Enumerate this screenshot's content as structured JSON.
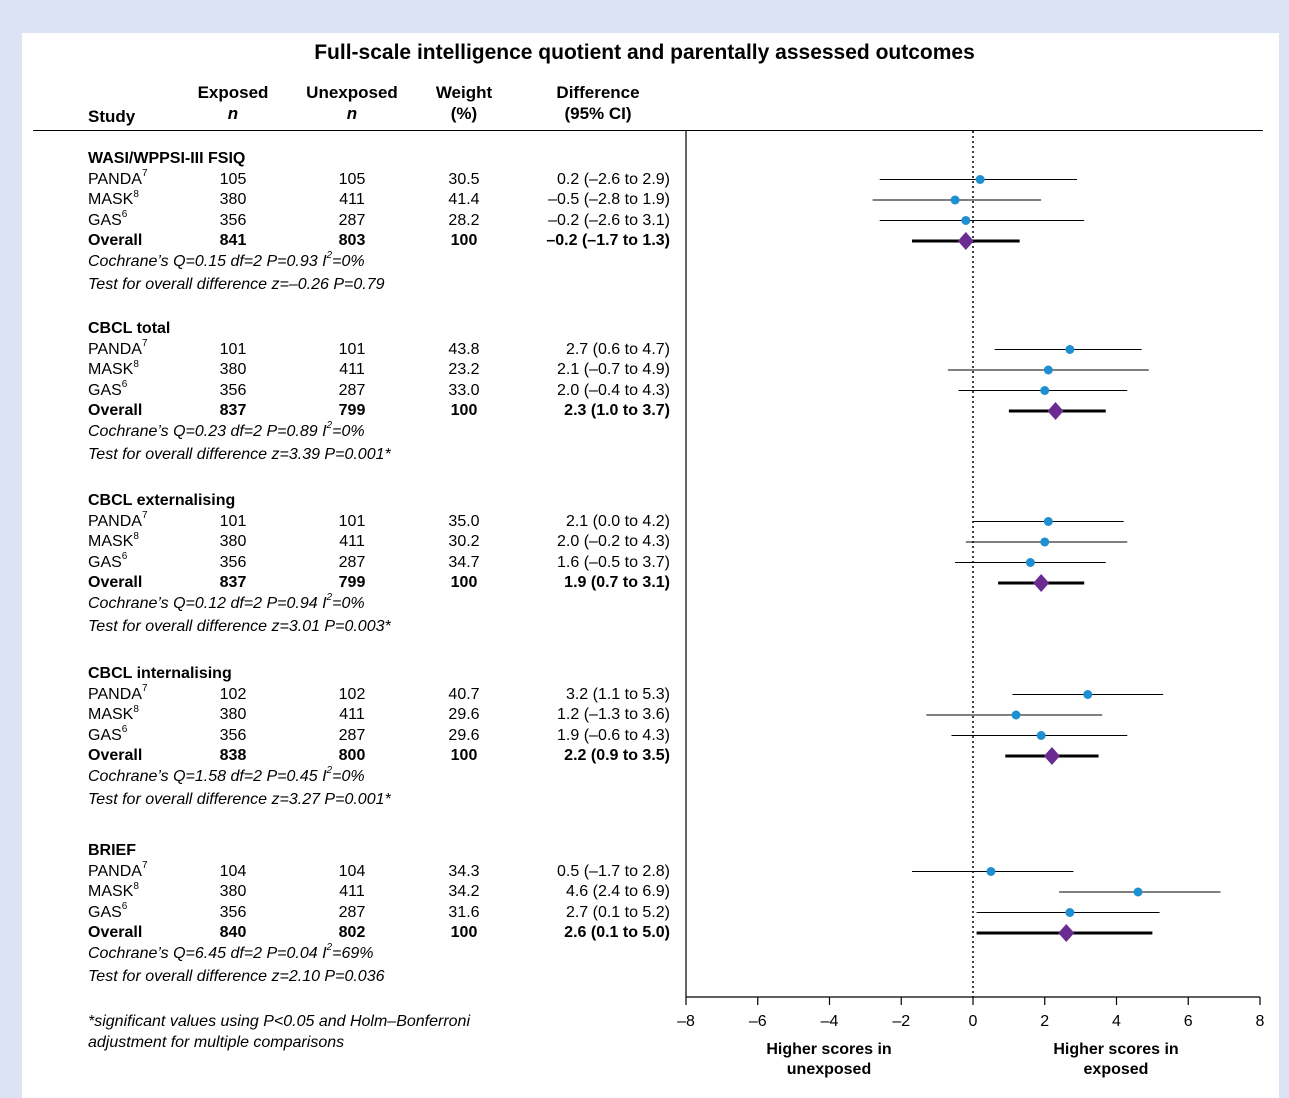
{
  "title": "Full-scale intelligence quotient and parentally assessed outcomes",
  "headers": {
    "study": "Study",
    "exposed": "Exposed",
    "exposed_n": "n",
    "unexposed": "Unexposed",
    "unexposed_n": "n",
    "weight": "Weight",
    "weight_unit": "(%)",
    "difference": "Difference",
    "ci": "(95% CI)"
  },
  "colors": {
    "study_point": "#1e8fd0",
    "overall_diamond": "#6b2c91",
    "background": "#dce3f3"
  },
  "footnote_line1": "*significant values using P<0.05 and Holm–Bonferroni",
  "footnote_line2": "adjustment for multiple comparisons",
  "axis_label_left_1": "Higher scores in",
  "axis_label_left_2": "unexposed",
  "axis_label_right_1": "Higher scores in",
  "axis_label_right_2": "exposed",
  "chart_data": {
    "type": "forest",
    "xlim": [
      -8,
      8
    ],
    "xticks": [
      -8,
      -6,
      -4,
      -2,
      0,
      2,
      4,
      6,
      8
    ],
    "reference_line": 0,
    "groups": [
      {
        "name": "WASI/WPPSI-III FSIQ",
        "studies": [
          {
            "study": "PANDA",
            "ref": "7",
            "exposed": "105",
            "unexposed": "105",
            "weight": "30.5",
            "ci_text": "0.2 (–2.6 to 2.9)",
            "est": 0.2,
            "lo": -2.6,
            "hi": 2.9
          },
          {
            "study": "MASK",
            "ref": "8",
            "exposed": "380",
            "unexposed": "411",
            "weight": "41.4",
            "ci_text": "–0.5 (–2.8 to 1.9)",
            "est": -0.5,
            "lo": -2.8,
            "hi": 1.9
          },
          {
            "study": "GAS",
            "ref": "6",
            "exposed": "356",
            "unexposed": "287",
            "weight": "28.2",
            "ci_text": "–0.2 (–2.6 to 3.1)",
            "est": -0.2,
            "lo": -2.6,
            "hi": 3.1
          }
        ],
        "overall": {
          "label": "Overall",
          "exposed": "841",
          "unexposed": "803",
          "weight": "100",
          "ci_text": "–0.2 (–1.7 to 1.3)",
          "est": -0.2,
          "lo": -1.7,
          "hi": 1.3
        },
        "het_text": "Cochrane’s Q=0.15 df=2 P=0.93 I",
        "het_sup": "2",
        "het_tail": "=0%",
        "test_text": "Test for overall difference z=–0.26 P=0.79"
      },
      {
        "name": "CBCL total",
        "studies": [
          {
            "study": "PANDA",
            "ref": "7",
            "exposed": "101",
            "unexposed": "101",
            "weight": "43.8",
            "ci_text": "2.7 (0.6 to 4.7)",
            "est": 2.7,
            "lo": 0.6,
            "hi": 4.7
          },
          {
            "study": "MASK",
            "ref": "8",
            "exposed": "380",
            "unexposed": "411",
            "weight": "23.2",
            "ci_text": "2.1 (–0.7 to 4.9)",
            "est": 2.1,
            "lo": -0.7,
            "hi": 4.9
          },
          {
            "study": "GAS",
            "ref": "6",
            "exposed": "356",
            "unexposed": "287",
            "weight": "33.0",
            "ci_text": "2.0 (–0.4 to 4.3)",
            "est": 2.0,
            "lo": -0.4,
            "hi": 4.3
          }
        ],
        "overall": {
          "label": "Overall",
          "exposed": "837",
          "unexposed": "799",
          "weight": "100",
          "ci_text": "2.3 (1.0 to 3.7)",
          "est": 2.3,
          "lo": 1.0,
          "hi": 3.7
        },
        "het_text": "Cochrane’s Q=0.23 df=2 P=0.89 I",
        "het_sup": "2",
        "het_tail": "=0%",
        "test_text": "Test for overall difference z=3.39 P=0.001*"
      },
      {
        "name": "CBCL externalising",
        "studies": [
          {
            "study": "PANDA",
            "ref": "7",
            "exposed": "101",
            "unexposed": "101",
            "weight": "35.0",
            "ci_text": "2.1 (0.0 to 4.2)",
            "est": 2.1,
            "lo": 0.0,
            "hi": 4.2
          },
          {
            "study": "MASK",
            "ref": "8",
            "exposed": "380",
            "unexposed": "411",
            "weight": "30.2",
            "ci_text": "2.0 (–0.2 to 4.3)",
            "est": 2.0,
            "lo": -0.2,
            "hi": 4.3
          },
          {
            "study": "GAS",
            "ref": "6",
            "exposed": "356",
            "unexposed": "287",
            "weight": "34.7",
            "ci_text": "1.6 (–0.5 to 3.7)",
            "est": 1.6,
            "lo": -0.5,
            "hi": 3.7
          }
        ],
        "overall": {
          "label": "Overall",
          "exposed": "837",
          "unexposed": "799",
          "weight": "100",
          "ci_text": "1.9 (0.7 to 3.1)",
          "est": 1.9,
          "lo": 0.7,
          "hi": 3.1
        },
        "het_text": "Cochrane’s Q=0.12 df=2 P=0.94 I",
        "het_sup": "2",
        "het_tail": "=0%",
        "test_text": "Test for overall difference z=3.01 P=0.003*"
      },
      {
        "name": "CBCL internalising",
        "studies": [
          {
            "study": "PANDA",
            "ref": "7",
            "exposed": "102",
            "unexposed": "102",
            "weight": "40.7",
            "ci_text": "3.2 (1.1 to 5.3)",
            "est": 3.2,
            "lo": 1.1,
            "hi": 5.3
          },
          {
            "study": "MASK",
            "ref": "8",
            "exposed": "380",
            "unexposed": "411",
            "weight": "29.6",
            "ci_text": "1.2 (–1.3 to 3.6)",
            "est": 1.2,
            "lo": -1.3,
            "hi": 3.6
          },
          {
            "study": "GAS",
            "ref": "6",
            "exposed": "356",
            "unexposed": "287",
            "weight": "29.6",
            "ci_text": "1.9 (–0.6 to 4.3)",
            "est": 1.9,
            "lo": -0.6,
            "hi": 4.3
          }
        ],
        "overall": {
          "label": "Overall",
          "exposed": "838",
          "unexposed": "800",
          "weight": "100",
          "ci_text": "2.2 (0.9 to 3.5)",
          "est": 2.2,
          "lo": 0.9,
          "hi": 3.5
        },
        "het_text": "Cochrane’s Q=1.58 df=2 P=0.45 I",
        "het_sup": "2",
        "het_tail": "=0%",
        "test_text": "Test for overall difference z=3.27 P=0.001*"
      },
      {
        "name": "BRIEF",
        "studies": [
          {
            "study": "PANDA",
            "ref": "7",
            "exposed": "104",
            "unexposed": "104",
            "weight": "34.3",
            "ci_text": "0.5 (–1.7 to 2.8)",
            "est": 0.5,
            "lo": -1.7,
            "hi": 2.8
          },
          {
            "study": "MASK",
            "ref": "8",
            "exposed": "380",
            "unexposed": "411",
            "weight": "34.2",
            "ci_text": "4.6 (2.4 to 6.9)",
            "est": 4.6,
            "lo": 2.4,
            "hi": 6.9
          },
          {
            "study": "GAS",
            "ref": "6",
            "exposed": "356",
            "unexposed": "287",
            "weight": "31.6",
            "ci_text": "2.7 (0.1 to 5.2)",
            "est": 2.7,
            "lo": 0.1,
            "hi": 5.2
          }
        ],
        "overall": {
          "label": "Overall",
          "exposed": "840",
          "unexposed": "802",
          "weight": "100",
          "ci_text": "2.6 (0.1 to 5.0)",
          "est": 2.6,
          "lo": 0.1,
          "hi": 5.0
        },
        "het_text": "Cochrane’s Q=6.45 df=2 P=0.04 I",
        "het_sup": "2",
        "het_tail": "=69%",
        "test_text": "Test for overall difference z=2.10 P=0.036"
      }
    ]
  }
}
